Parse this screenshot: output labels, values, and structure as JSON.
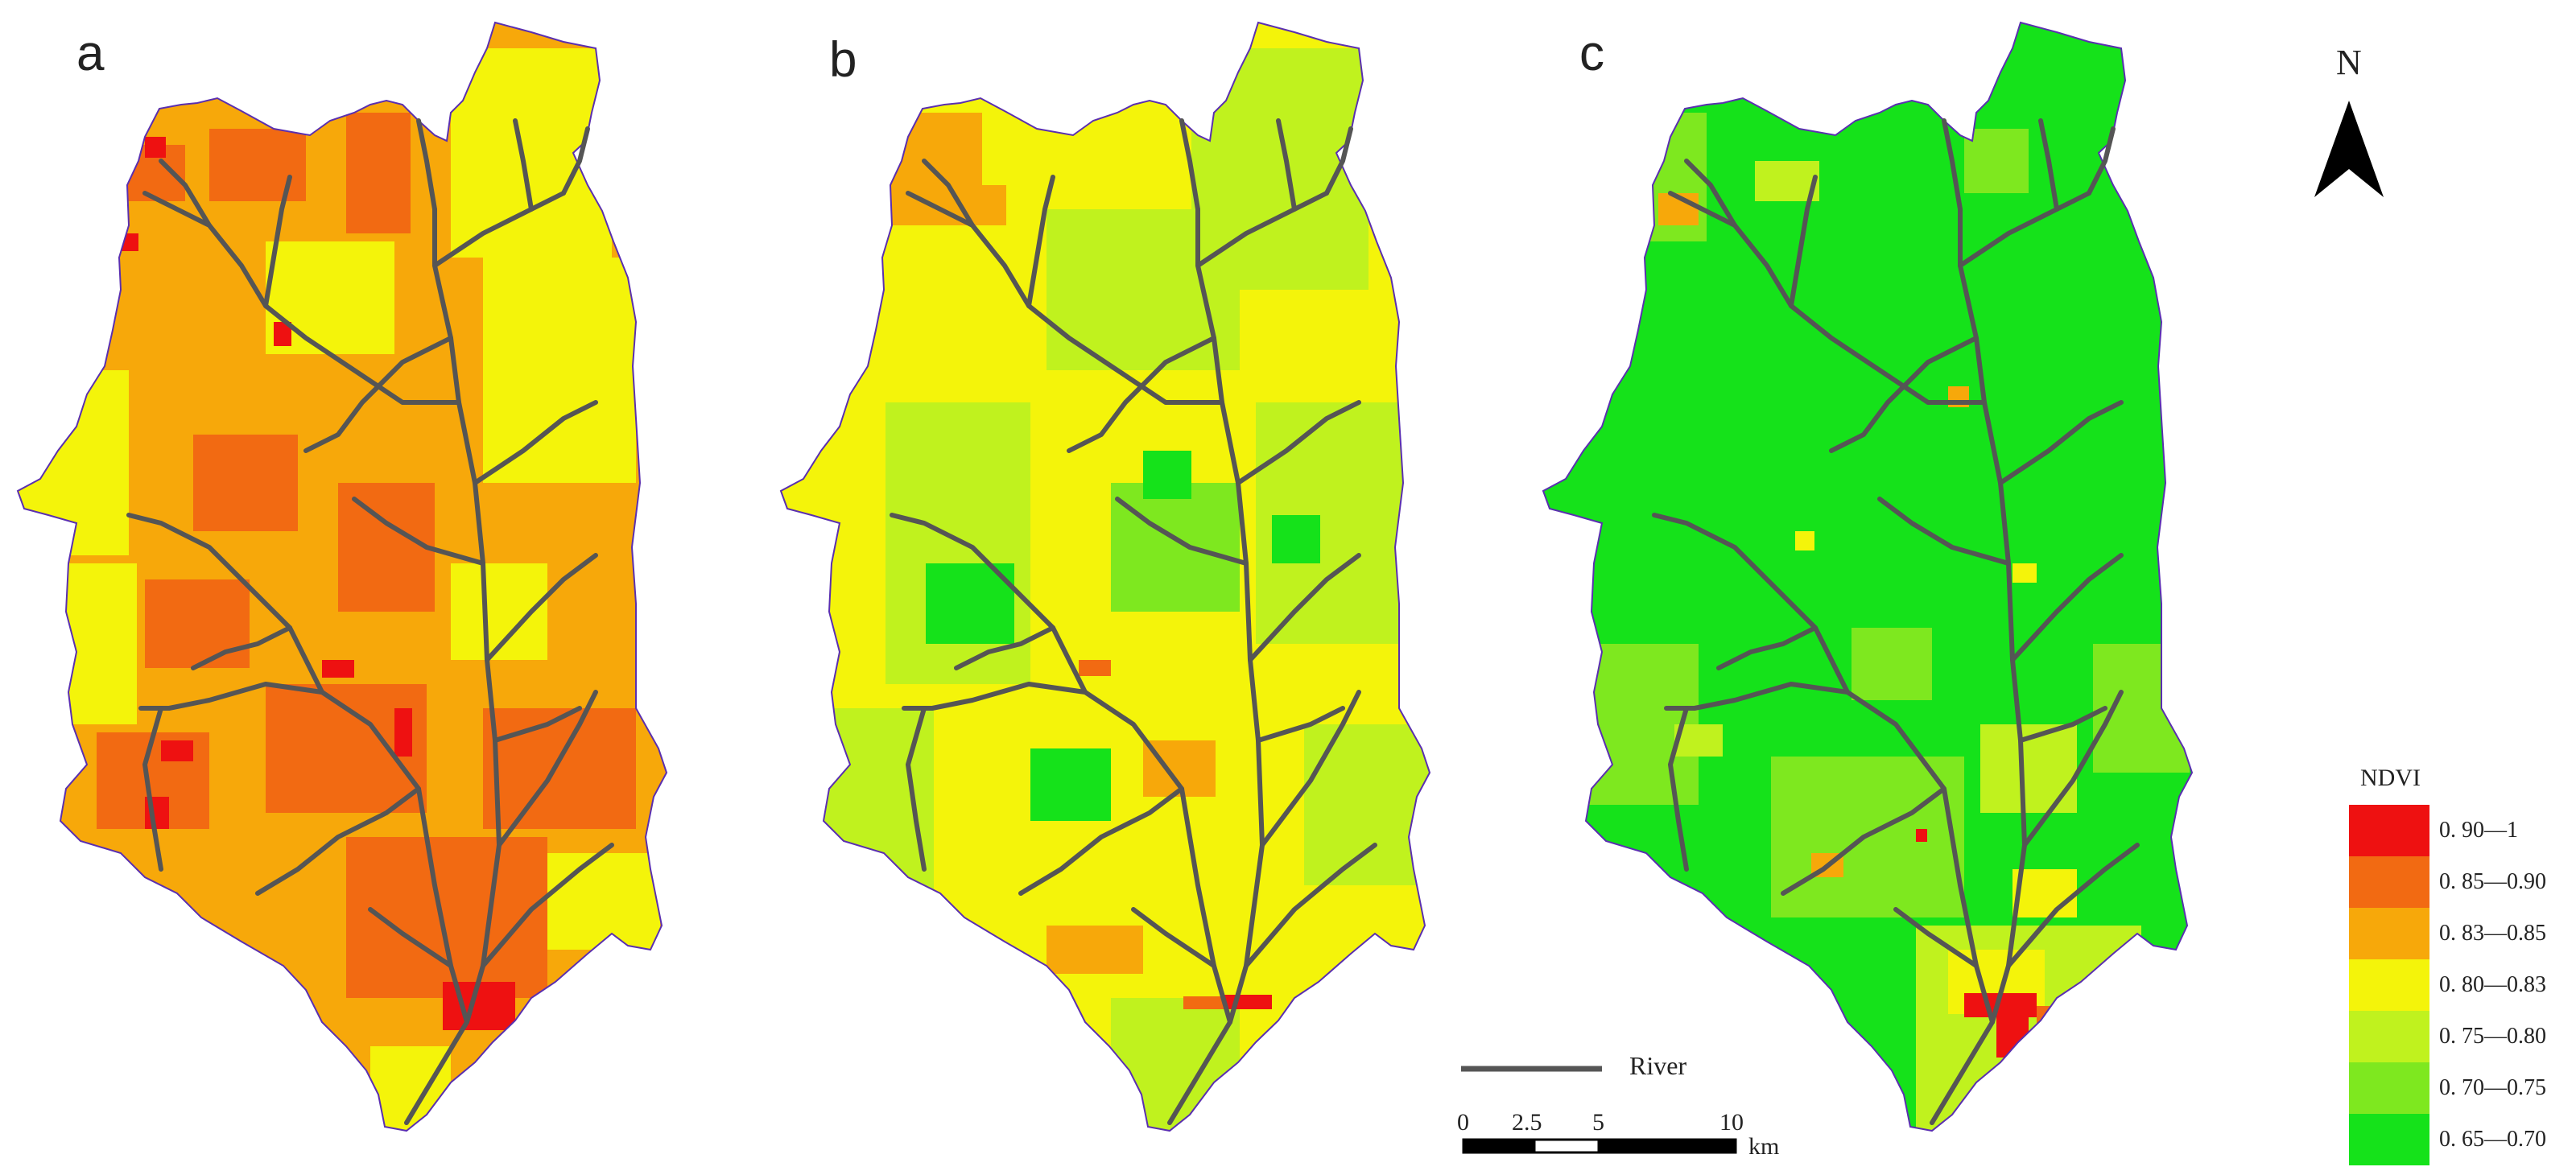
{
  "panels": [
    {
      "label": "a",
      "dominant_class": "0.83—0.85 / 0.85—0.90"
    },
    {
      "label": "b",
      "dominant_class": "0.80—0.83 / 0.75—0.80"
    },
    {
      "label": "c",
      "dominant_class": "0.65—0.70"
    }
  ],
  "north_arrow": {
    "label": "N"
  },
  "river_legend": {
    "label": "River",
    "color": "#555555"
  },
  "scale_bar": {
    "ticks": [
      "0",
      "2.5",
      "5",
      "10"
    ],
    "unit": "km"
  },
  "ndvi_legend": {
    "title": "NDVI",
    "classes": [
      {
        "label": "0. 90—1",
        "color": "#ee1111"
      },
      {
        "label": "0. 85—0.90",
        "color": "#f26a12"
      },
      {
        "label": "0. 83—0.85",
        "color": "#f7a80a"
      },
      {
        "label": "0. 80—0.83",
        "color": "#f4f40a"
      },
      {
        "label": "0. 75—0.80",
        "color": "#c0f21e"
      },
      {
        "label": "0. 70—0.75",
        "color": "#7ee81f"
      },
      {
        "label": "0. 65—0.70",
        "color": "#15e21a"
      }
    ]
  },
  "boundary_color": "#5a2fb0"
}
